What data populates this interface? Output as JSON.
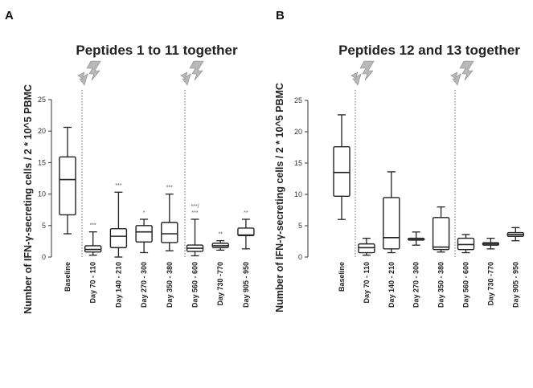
{
  "panels": [
    {
      "letter": "A",
      "title": "Peptides 1 to 11 together",
      "ylabel": "Number of IFN-γ-secreting cells / 2 * 10^5 PBMC",
      "yticks": [
        "0",
        "5",
        "10",
        "15",
        "20",
        "25"
      ]
    },
    {
      "letter": "B",
      "title": "Peptides 12 and 13 together",
      "ylabel": "Number of IFN-γ-secreting cells / 2 * 10^5 PBMC",
      "yticks": [
        "0",
        "5",
        "10",
        "15",
        "20",
        "25"
      ]
    }
  ],
  "chart_data": [
    {
      "type": "box",
      "title": "Peptides 1 to 11 together",
      "ylabel": "Number of IFN-γ-secreting cells / 2 * 10^5 PBMC",
      "ylim": [
        0,
        25
      ],
      "grid": false,
      "markers": [
        "lightning",
        "lightning"
      ],
      "categories": [
        "Baseline",
        "Day 70 - 110",
        "Day 140 - 210",
        "Day 270 - 300",
        "Day 350 - 380",
        "Day 560 - 600",
        "Day 730 -770",
        "Day 905 - 950"
      ],
      "boxes": [
        {
          "min": 3.7,
          "q1": 6.7,
          "median": 12.3,
          "q3": 15.9,
          "max": 20.6,
          "sig": ""
        },
        {
          "min": 0.3,
          "q1": 0.8,
          "median": 1.2,
          "q3": 1.8,
          "max": 4.0,
          "sig": "***"
        },
        {
          "min": 0.0,
          "q1": 1.5,
          "median": 3.3,
          "q3": 4.5,
          "max": 10.3,
          "sig": "***"
        },
        {
          "min": 0.7,
          "q1": 2.4,
          "median": 4.0,
          "q3": 5.0,
          "max": 6.0,
          "sig": "*"
        },
        {
          "min": 1.0,
          "q1": 2.3,
          "median": 3.7,
          "q3": 5.5,
          "max": 10.0,
          "sig": "***"
        },
        {
          "min": 0.2,
          "q1": 0.9,
          "median": 1.4,
          "q3": 1.9,
          "max": 6.0,
          "sig": "***/\n***"
        },
        {
          "min": 1.1,
          "q1": 1.5,
          "median": 1.8,
          "q3": 2.2,
          "max": 2.6,
          "sig": "**"
        },
        {
          "min": 1.3,
          "q1": 3.4,
          "median": 3.5,
          "q3": 4.6,
          "max": 6.0,
          "sig": "**"
        }
      ]
    },
    {
      "type": "box",
      "title": "Peptides 12 and 13 together",
      "ylabel": "Number of IFN-γ-secreting cells / 2 * 10^5 PBMC",
      "ylim": [
        0,
        25
      ],
      "grid": false,
      "markers": [
        "lightning",
        "lightning"
      ],
      "categories": [
        "Baseline",
        "Day 70 - 110",
        "Day 140 - 210",
        "Day 270 - 300",
        "Day 350 - 380",
        "Day 560 - 600",
        "Day 730 -770",
        "Day 905 - 950"
      ],
      "boxes": [
        {
          "min": 6.0,
          "q1": 9.7,
          "median": 13.5,
          "q3": 17.6,
          "max": 22.7,
          "sig": ""
        },
        {
          "min": 0.3,
          "q1": 0.7,
          "median": 1.5,
          "q3": 2.1,
          "max": 3.0,
          "sig": ""
        },
        {
          "min": 0.7,
          "q1": 1.3,
          "median": 3.1,
          "q3": 9.5,
          "max": 13.6,
          "sig": ""
        },
        {
          "min": 1.9,
          "q1": 2.7,
          "median": 2.8,
          "q3": 3.0,
          "max": 4.0,
          "sig": ""
        },
        {
          "min": 0.8,
          "q1": 1.2,
          "median": 1.6,
          "q3": 6.3,
          "max": 8.0,
          "sig": ""
        },
        {
          "min": 0.7,
          "q1": 1.2,
          "median": 2.0,
          "q3": 3.0,
          "max": 3.6,
          "sig": ""
        },
        {
          "min": 1.3,
          "q1": 1.9,
          "median": 2.1,
          "q3": 2.3,
          "max": 3.0,
          "sig": ""
        },
        {
          "min": 2.6,
          "q1": 3.3,
          "median": 3.6,
          "q3": 3.9,
          "max": 4.7,
          "sig": ""
        }
      ]
    }
  ]
}
